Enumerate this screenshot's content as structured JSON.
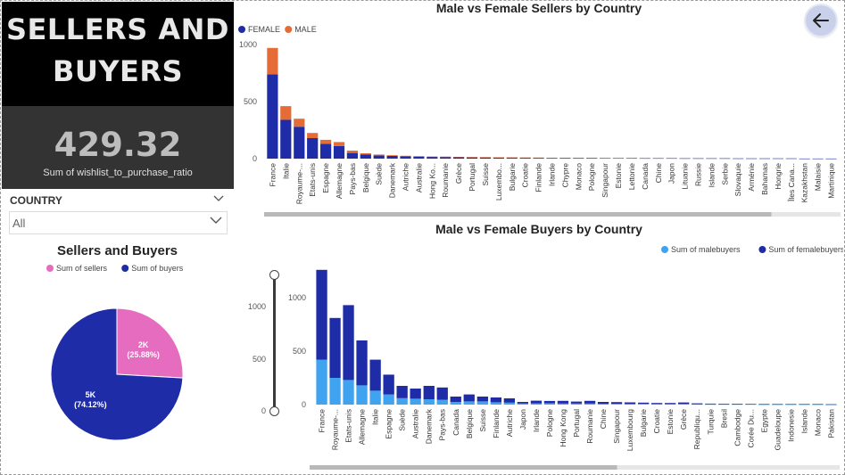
{
  "title": "SELLERS AND\nBUYERS",
  "kpi": {
    "value": "429.32",
    "label": "Sum of wishlist_to_purchase_ratio"
  },
  "slicer": {
    "header": "COUNTRY",
    "value": "All"
  },
  "icons": {
    "back": "arrow-left-icon",
    "collapse": "chevron-down-icon",
    "dropdown": "chevron-down-icon"
  },
  "colors": {
    "female": "#1f2ca8",
    "male": "#e66c37",
    "malebuyers": "#3fa3ef",
    "sellers_pie": "#e66cc0",
    "buyers_pie": "#1f2ca8"
  },
  "zoom_slider": {
    "top_label": "1000",
    "mid_label": "500",
    "bottom_label": "0"
  },
  "chart_data": [
    {
      "type": "bar",
      "stacked": true,
      "title": "Male vs Female Sellers by Country",
      "legend": [
        "FEMALE",
        "MALE"
      ],
      "legend_position": "top-left",
      "ylim": [
        0,
        1000
      ],
      "yticks": [
        0,
        500,
        1000
      ],
      "categories": [
        "France",
        "Italie",
        "Royaume-...",
        "Etats-unis",
        "Espagne",
        "Allemagne",
        "Pays-bas",
        "Belgique",
        "Suède",
        "Danemark",
        "Autriche",
        "Australie",
        "Hong Ko...",
        "Roumanie",
        "Grèce",
        "Portugal",
        "Suisse",
        "Luxembo...",
        "Bulgarie",
        "Croatie",
        "Finlande",
        "Irlande",
        "Chypre",
        "Monaco",
        "Pologne",
        "Singapour",
        "Estonie",
        "Lettonie",
        "Canada",
        "Chine",
        "Japon",
        "Lituanie",
        "Russie",
        "Islande",
        "Serbie",
        "Slovaquie",
        "Arménie",
        "Bahamas",
        "Hongrie",
        "Îles Cana...",
        "Kazakhstan",
        "Malaisie",
        "Martinique"
      ],
      "series": [
        {
          "name": "FEMALE",
          "values": [
            740,
            340,
            280,
            180,
            130,
            110,
            50,
            35,
            28,
            24,
            20,
            18,
            16,
            15,
            13,
            12,
            11,
            10,
            9,
            8,
            8,
            7,
            7,
            6,
            6,
            5,
            5,
            5,
            4,
            4,
            4,
            3,
            3,
            3,
            3,
            2,
            2,
            2,
            2,
            2,
            1,
            1,
            1
          ]
        },
        {
          "name": "MALE",
          "values": [
            230,
            120,
            70,
            45,
            35,
            35,
            20,
            12,
            8,
            6,
            5,
            4,
            3,
            3,
            3,
            2,
            2,
            2,
            2,
            2,
            1,
            1,
            1,
            1,
            1,
            1,
            1,
            0,
            0,
            0,
            0,
            0,
            0,
            0,
            0,
            0,
            0,
            0,
            0,
            0,
            0,
            0,
            0
          ]
        }
      ],
      "scrollbar": {
        "visible_fraction": 0.88
      }
    },
    {
      "type": "bar",
      "stacked": true,
      "title": "Male vs Female Buyers by Country",
      "legend": [
        "Sum of malebuyers",
        "Sum of femalebuyers"
      ],
      "legend_position": "top-right",
      "ylim": [
        0,
        1300
      ],
      "yticks": [
        0,
        500,
        1000
      ],
      "categories": [
        "France",
        "Royaume-...",
        "Etats-unis",
        "Allemagne",
        "Italie",
        "Espagne",
        "Suède",
        "Australie",
        "Danemark",
        "Pays-bas",
        "Canada",
        "Belgique",
        "Suisse",
        "Finlande",
        "Autriche",
        "Japon",
        "Irlande",
        "Pologne",
        "Hong Kong",
        "Portugal",
        "Roumanie",
        "Chine",
        "Singapour",
        "Luxembourg",
        "Bulgarie",
        "Croatie",
        "Estonie",
        "Grèce",
        "Republiqu...",
        "Turquie",
        "Bresil",
        "Cambodge",
        "Corée Du...",
        "Egypte",
        "Guadeloupe",
        "Indonesie",
        "Islande",
        "Monaco",
        "Pakistan"
      ],
      "series": [
        {
          "name": "Sum of malebuyers",
          "values": [
            420,
            250,
            230,
            180,
            130,
            95,
            60,
            55,
            50,
            45,
            25,
            30,
            30,
            22,
            18,
            10,
            12,
            12,
            10,
            10,
            10,
            7,
            7,
            6,
            6,
            5,
            5,
            6,
            4,
            3,
            3,
            3,
            3,
            2,
            2,
            2,
            2,
            2,
            1
          ]
        },
        {
          "name": "Sum of femalebuyers",
          "values": [
            840,
            560,
            700,
            420,
            290,
            185,
            115,
            95,
            125,
            115,
            50,
            65,
            45,
            45,
            40,
            15,
            25,
            22,
            25,
            18,
            25,
            18,
            16,
            15,
            12,
            10,
            10,
            14,
            8,
            6,
            5,
            5,
            4,
            4,
            3,
            3,
            3,
            3,
            2
          ]
        }
      ],
      "scrollbar": {
        "visible_fraction": 0.58
      }
    },
    {
      "type": "pie",
      "title": "Sellers and Buyers",
      "legend": [
        "Sum of sellers",
        "Sum of buyers"
      ],
      "legend_position": "top",
      "slices": [
        {
          "name": "Sum of sellers",
          "value": 25.88,
          "label": "2K",
          "percent_label": "(25.88%)"
        },
        {
          "name": "Sum of buyers",
          "value": 74.12,
          "label": "5K",
          "percent_label": "(74.12%)"
        }
      ]
    }
  ]
}
